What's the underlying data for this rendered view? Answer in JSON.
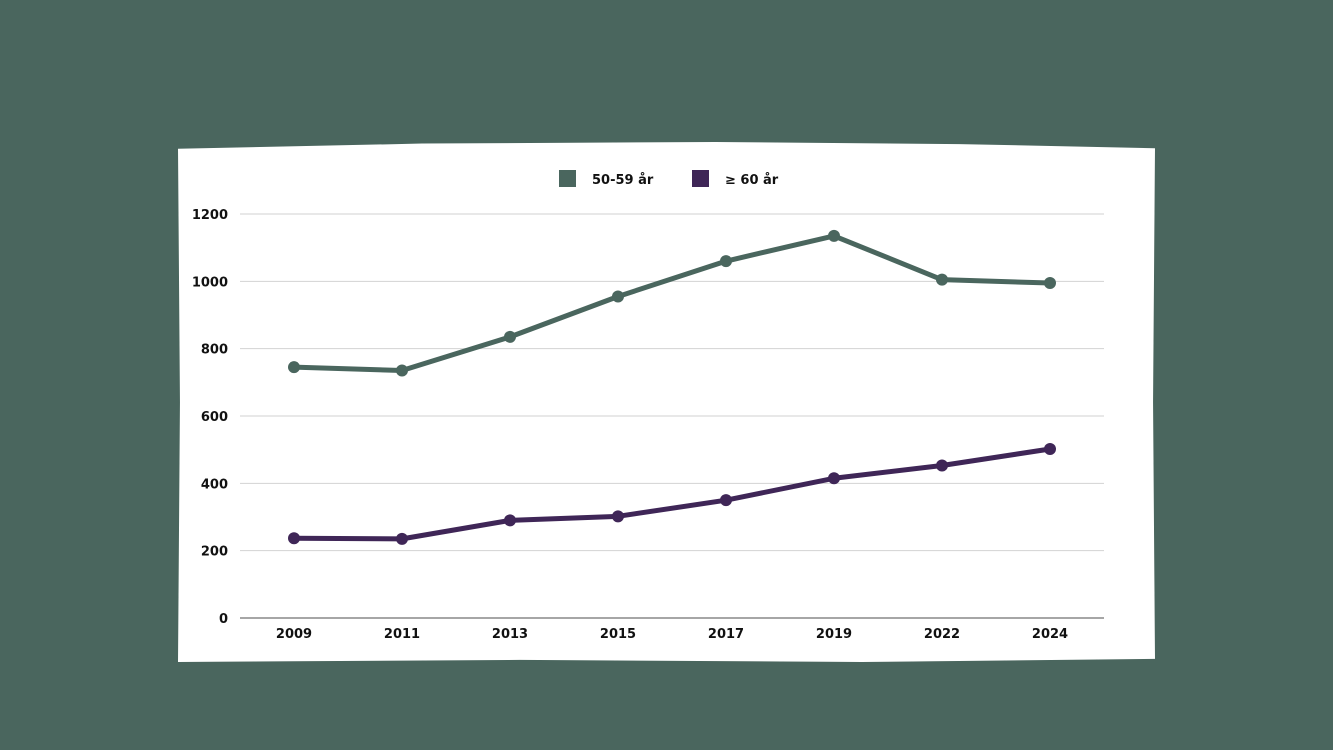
{
  "colors": {
    "background": "#4a665e",
    "series_1": "#4a665e",
    "series_2": "#3f2657",
    "grid": "#d2d2d2",
    "axis": "#888888"
  },
  "chart_data": {
    "type": "line",
    "x": [
      "2009",
      "2011",
      "2013",
      "2015",
      "2017",
      "2019",
      "2022",
      "2024"
    ],
    "series": [
      {
        "name": "50-59 år",
        "values": [
          745,
          735,
          835,
          955,
          1060,
          1135,
          1005,
          995
        ]
      },
      {
        "name": "≥ 60 år",
        "values": [
          237,
          235,
          290,
          302,
          350,
          415,
          453,
          502
        ]
      }
    ],
    "title": "",
    "xlabel": "",
    "ylabel": "",
    "ylim": [
      0,
      1200
    ],
    "yticks": [
      "0",
      "200",
      "400",
      "600",
      "800",
      "1000",
      "1200"
    ],
    "grid": true,
    "legend_position": "top-center"
  }
}
